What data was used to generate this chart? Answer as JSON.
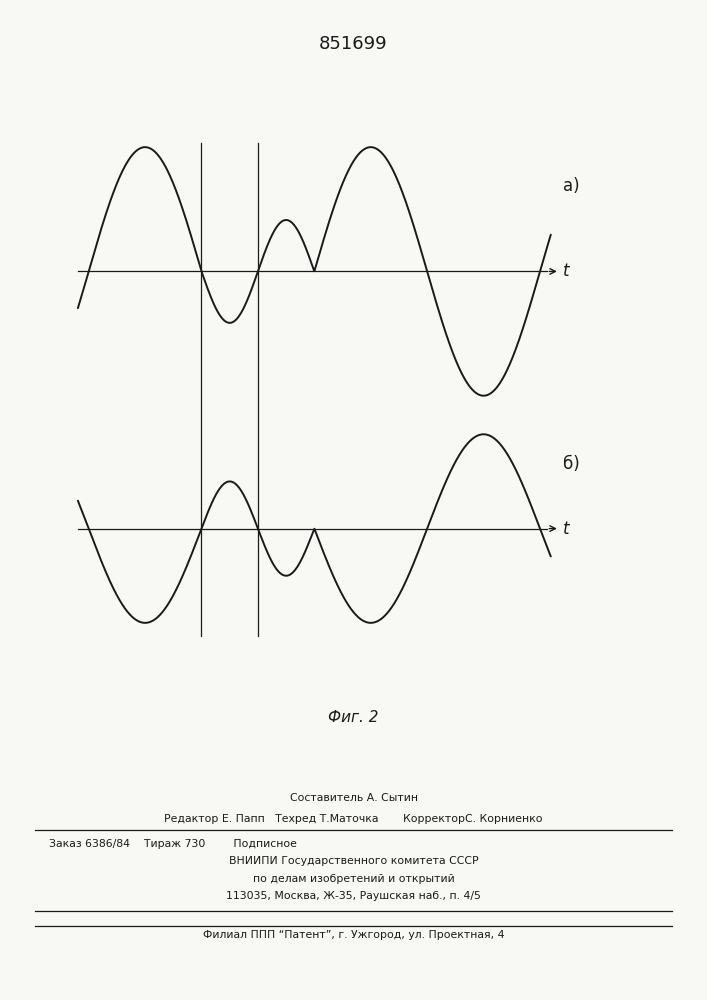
{
  "title": "851699",
  "fig_label": "Фиг. 2",
  "label_a": "a)",
  "label_b": "б)",
  "t_label": "t",
  "background_color": "#f8f8f5",
  "line_color": "#1a1a1a",
  "composer_line": "Составитель А. Сытин",
  "editor_line": "Редактор Е. Папп   Техред Т.Маточка       КорректорС. Корниенко",
  "order_line": "Заказ 6386/84    Тираж 730        Подписное",
  "vnipi_line": "ВНИИПИ Государственного комитета СССР",
  "affairs_line": "по делам изобретений и открытий",
  "address_line": "113035, Москва, Ж-35, Раушская наб., п. 4/5",
  "filial_line": "Филиал ППП “Патент”, г. Ужгород, ул. Проектная, 4"
}
